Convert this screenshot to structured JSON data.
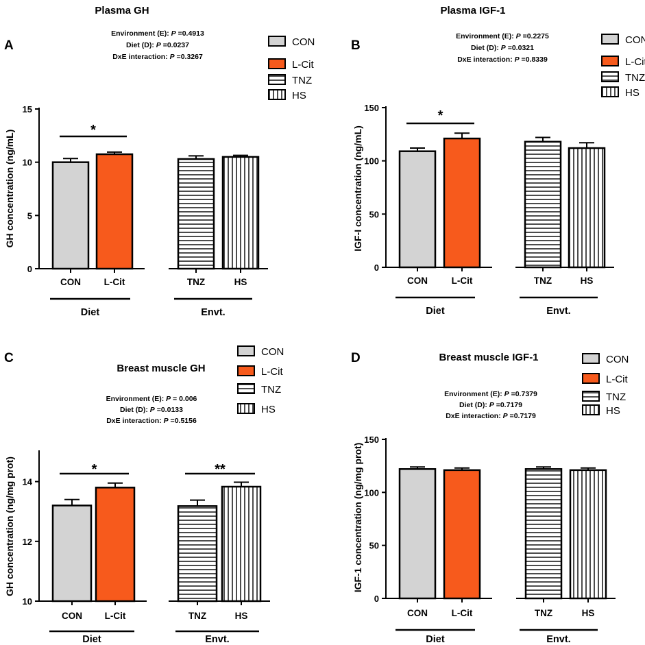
{
  "figure": {
    "legend_labels": [
      "CON",
      "L-Cit",
      "TNZ",
      "HS"
    ],
    "group_labels": [
      "Diet",
      "Envt."
    ],
    "colors": {
      "CON": "#d3d3d3",
      "L-Cit": "#f75a1c",
      "TNZ": "#ffffff",
      "HS": "#ffffff",
      "axis": "#000000"
    }
  },
  "chart_data": [
    {
      "type": "bar",
      "panel": "A",
      "title": "Plasma GH",
      "ylabel": "GH concentration (ng/mL)",
      "xlabel": "",
      "categories": [
        "CON",
        "L-Cit",
        "TNZ",
        "HS"
      ],
      "values": [
        10.0,
        10.75,
        10.3,
        10.5
      ],
      "errors": [
        0.35,
        0.2,
        0.3,
        0.15
      ],
      "ylim": [
        0,
        15
      ],
      "yticks": [
        0,
        5,
        10,
        15
      ],
      "stats": [
        {
          "label": "Environment (E): ",
          "p": "P =0.4913"
        },
        {
          "label": "Diet (D): ",
          "p": "P =0.0237"
        },
        {
          "label": "DxE interaction: ",
          "p": "P =0.3267"
        }
      ],
      "significance": [
        {
          "pair": "Diet",
          "mark": "*"
        }
      ]
    },
    {
      "type": "bar",
      "panel": "B",
      "title": "Plasma IGF-1",
      "ylabel": "IGF-I concentration (ng/mL)",
      "xlabel": "",
      "categories": [
        "CON",
        "L-Cit",
        "TNZ",
        "HS"
      ],
      "values": [
        109,
        121,
        118,
        112
      ],
      "errors": [
        3,
        5,
        4,
        5
      ],
      "ylim": [
        0,
        150
      ],
      "yticks": [
        0,
        50,
        100,
        150
      ],
      "stats": [
        {
          "label": "Environment (E): ",
          "p": "P =0.2275"
        },
        {
          "label": "Diet (D): ",
          "p": "P =0.0321"
        },
        {
          "label": "DxE interaction: ",
          "p": "P =0.8339"
        }
      ],
      "significance": [
        {
          "pair": "Diet",
          "mark": "*"
        }
      ]
    },
    {
      "type": "bar",
      "panel": "C",
      "title": "Breast muscle GH",
      "ylabel": "GH concentration (ng/mg prot)",
      "xlabel": "",
      "categories": [
        "CON",
        "L-Cit",
        "TNZ",
        "HS"
      ],
      "values": [
        13.2,
        13.8,
        13.18,
        13.83
      ],
      "errors": [
        0.2,
        0.15,
        0.2,
        0.15
      ],
      "ylim": [
        10,
        15
      ],
      "yticks": [
        10,
        12,
        14
      ],
      "stats": [
        {
          "label": "Environment (E): ",
          "p": "P = 0.006"
        },
        {
          "label": "Diet (D): ",
          "p": "P =0.0133"
        },
        {
          "label": "DxE interaction: ",
          "p": "P =0.5156"
        }
      ],
      "significance": [
        {
          "pair": "Diet",
          "mark": "*"
        },
        {
          "pair": "Envt.",
          "mark": "**"
        }
      ]
    },
    {
      "type": "bar",
      "panel": "D",
      "title": "Breast muscle IGF-1",
      "ylabel": "IGF-1 concentration (ng/mg prot)",
      "xlabel": "",
      "categories": [
        "CON",
        "L-Cit",
        "TNZ",
        "HS"
      ],
      "values": [
        122,
        121,
        122,
        121
      ],
      "errors": [
        2,
        2,
        2,
        2
      ],
      "ylim": [
        0,
        150
      ],
      "yticks": [
        0,
        50,
        100,
        150
      ],
      "stats": [
        {
          "label": "Environment (E): ",
          "p": "P =0.7379"
        },
        {
          "label": "Diet (D): ",
          "p": "P =0.7179"
        },
        {
          "label": "DxE interaction: ",
          "p": "P =0.7179"
        }
      ],
      "significance": []
    }
  ]
}
